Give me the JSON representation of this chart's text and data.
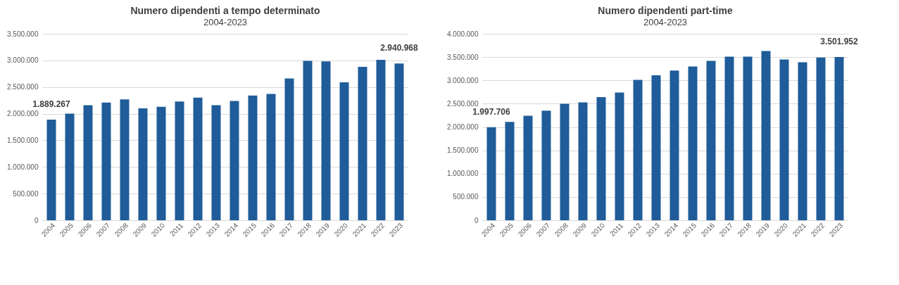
{
  "chart_data": [
    {
      "type": "bar",
      "title": "Numero dipendenti a tempo determinato",
      "subtitle": "2004-2023",
      "categories": [
        "2004",
        "2005",
        "2006",
        "2007",
        "2008",
        "2009",
        "2010",
        "2011",
        "2012",
        "2013",
        "2014",
        "2015",
        "2016",
        "2017",
        "2018",
        "2019",
        "2020",
        "2021",
        "2022",
        "2023"
      ],
      "values": [
        1889267,
        2000000,
        2160000,
        2210000,
        2270000,
        2100000,
        2130000,
        2230000,
        2300000,
        2160000,
        2240000,
        2340000,
        2370000,
        2660000,
        2990000,
        2980000,
        2590000,
        2880000,
        3010000,
        2940968
      ],
      "value_labels": [
        "1.889.267",
        null,
        null,
        null,
        null,
        null,
        null,
        null,
        null,
        null,
        null,
        null,
        null,
        null,
        null,
        null,
        null,
        null,
        null,
        "2.940.968"
      ],
      "color": "#1f5c99",
      "ylim": [
        0,
        3500000
      ],
      "yticks": [
        {
          "value": 0,
          "label": "0"
        },
        {
          "value": 500000,
          "label": "500.000"
        },
        {
          "value": 1000000,
          "label": "1.000.000"
        },
        {
          "value": 1500000,
          "label": "1.500.000"
        },
        {
          "value": 2000000,
          "label": "2.000.000"
        },
        {
          "value": 2500000,
          "label": "2.500.000"
        },
        {
          "value": 3000000,
          "label": "3.000.000"
        },
        {
          "value": 3500000,
          "label": "3.500.000"
        }
      ],
      "grid": "y"
    },
    {
      "type": "bar",
      "title": "Numero dipendenti part-time",
      "subtitle": "2004-2023",
      "categories": [
        "2004",
        "2005",
        "2006",
        "2007",
        "2008",
        "2009",
        "2010",
        "2011",
        "2012",
        "2013",
        "2014",
        "2015",
        "2016",
        "2017",
        "2018",
        "2019",
        "2020",
        "2021",
        "2022",
        "2023"
      ],
      "values": [
        1997706,
        2110000,
        2240000,
        2350000,
        2500000,
        2530000,
        2640000,
        2740000,
        3010000,
        3110000,
        3210000,
        3300000,
        3420000,
        3510000,
        3510000,
        3630000,
        3450000,
        3390000,
        3490000,
        3501952
      ],
      "value_labels": [
        "1.997.706",
        null,
        null,
        null,
        null,
        null,
        null,
        null,
        null,
        null,
        null,
        null,
        null,
        null,
        null,
        null,
        null,
        null,
        null,
        "3.501.952"
      ],
      "color": "#1f5c99",
      "ylim": [
        0,
        4000000
      ],
      "yticks": [
        {
          "value": 0,
          "label": "0"
        },
        {
          "value": 500000,
          "label": "500.000"
        },
        {
          "value": 1000000,
          "label": "1.000.000"
        },
        {
          "value": 1500000,
          "label": "1.500.000"
        },
        {
          "value": 2000000,
          "label": "2.000.000"
        },
        {
          "value": 2500000,
          "label": "2.500.000"
        },
        {
          "value": 3000000,
          "label": "3.000.000"
        },
        {
          "value": 3500000,
          "label": "3.500.000"
        },
        {
          "value": 4000000,
          "label": "4.000.000"
        }
      ],
      "grid": "y"
    }
  ]
}
